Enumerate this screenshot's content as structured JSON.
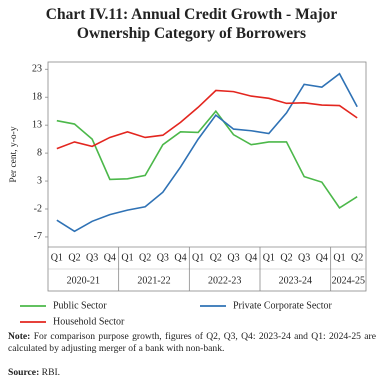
{
  "chart_data": {
    "type": "line",
    "title": "Chart IV.11: Annual Credit Growth - Major Ownership Category of Borrowers",
    "y_label": "Per cent, y-o-y",
    "categories": [
      "Q1",
      "Q2",
      "Q3",
      "Q4",
      "Q1",
      "Q2",
      "Q3",
      "Q4",
      "Q1",
      "Q2",
      "Q3",
      "Q4",
      "Q1",
      "Q2",
      "Q3",
      "Q4",
      "Q1",
      "Q2"
    ],
    "x_groups": [
      "2020-21",
      "2021-22",
      "2022-23",
      "2023-24",
      "2024-25"
    ],
    "series": [
      {
        "name": "Public Sector",
        "color": "#4cb84a",
        "values": [
          13.8,
          13.2,
          10.5,
          3.3,
          3.4,
          4.0,
          9.5,
          11.8,
          11.7,
          15.5,
          11.3,
          9.5,
          10.0,
          10.0,
          3.8,
          2.8,
          -1.8,
          0.2
        ]
      },
      {
        "name": "Private Corporate Sector",
        "color": "#2f72b5",
        "values": [
          -4.0,
          -6.0,
          -4.2,
          -3.0,
          -2.2,
          -1.6,
          1.0,
          5.5,
          10.5,
          14.8,
          12.3,
          12.0,
          11.5,
          15.2,
          20.3,
          19.8,
          22.2,
          16.3
        ]
      },
      {
        "name": "Household Sector",
        "color": "#e3261f",
        "values": [
          8.8,
          10.0,
          9.2,
          10.8,
          11.8,
          10.8,
          11.2,
          13.5,
          16.2,
          19.2,
          19.0,
          18.2,
          17.8,
          16.9,
          17.0,
          16.6,
          16.5,
          14.3
        ]
      }
    ],
    "ylim": [
      -8.8,
      24.3
    ],
    "yticks": [
      -7,
      -2,
      3,
      8,
      13,
      18,
      23
    ],
    "grid": false,
    "note": {
      "label": "Note:",
      "text": "For comparison purpose growth, figures of Q2, Q3, Q4: 2023-24 and Q1: 2024-25 are calculated by adjusting merger of a bank with non-bank."
    },
    "source": {
      "label": "Source:",
      "text": "RBI."
    }
  }
}
